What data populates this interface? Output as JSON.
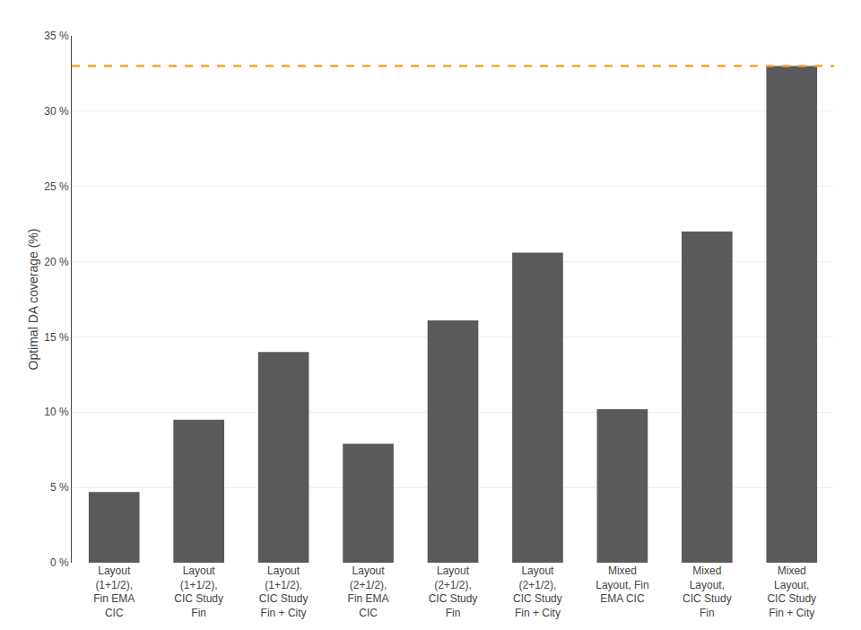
{
  "chart_data": {
    "type": "bar",
    "categories": [
      "Layout\n(1+1/2),\nFin EMA\nCIC",
      "Layout\n(1+1/2),\nCIC Study\nFin",
      "Layout\n(1+1/2),\nCIC Study\nFin + City",
      "Layout\n(2+1/2),\nFin EMA\nCIC",
      "Layout\n(2+1/2),\nCIC Study\nFin",
      "Layout\n(2+1/2),\nCIC Study\nFin + City",
      "Mixed\nLayout, Fin\nEMA CIC",
      "Mixed\nLayout,\nCIC Study\nFin",
      "Mixed\nLayout,\nCIC Study\nFin + City"
    ],
    "values": [
      4.7,
      9.5,
      14.0,
      7.9,
      16.1,
      20.6,
      10.2,
      22.0,
      33.0
    ],
    "color": "#5a5a5a",
    "ylabel": "Optimal DA coverage (%)",
    "ylim": [
      0,
      35
    ],
    "yticks": [
      {
        "value": 0,
        "label": "0 %"
      },
      {
        "value": 5,
        "label": "5 %"
      },
      {
        "value": 10,
        "label": "10 %"
      },
      {
        "value": 15,
        "label": "15 %"
      },
      {
        "value": 20,
        "label": "20 %"
      },
      {
        "value": 25,
        "label": "25 %"
      },
      {
        "value": 30,
        "label": "30 %"
      },
      {
        "value": 35,
        "label": "35 %"
      }
    ],
    "grid": true,
    "hline": {
      "y": 33.0,
      "color": "#f5a623",
      "line_style": "dashed"
    }
  }
}
